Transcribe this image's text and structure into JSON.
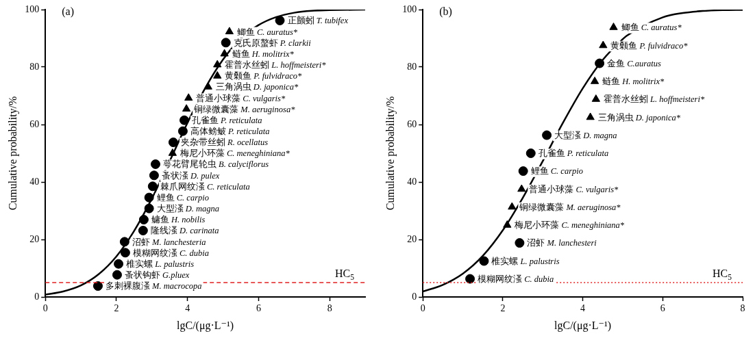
{
  "chart_data": [
    {
      "type": "scatter",
      "xlabel": "lgC/(μg·L⁻¹)",
      "ylabel": "Cumulative probability/%",
      "xlim": [
        0,
        9
      ],
      "ylim": [
        0,
        100
      ],
      "xticks": [
        0,
        2,
        4,
        6,
        8
      ],
      "yticks": [
        0,
        20,
        40,
        60,
        80,
        100
      ],
      "grid": false,
      "series": [
        {
          "type": "scatter",
          "marker": "circle",
          "color": "#000000",
          "x": [
            6.6,
            5.08,
            3.91,
            3.87,
            3.6,
            3.1,
            3.06,
            3.02,
            2.92,
            2.92,
            2.77,
            2.75,
            2.23,
            2.25,
            2.06,
            2.02,
            1.48
          ],
          "values": [
            96.2,
            88.5,
            61.5,
            57.7,
            53.8,
            46.2,
            42.3,
            38.5,
            34.6,
            30.8,
            26.9,
            23.1,
            19.2,
            15.4,
            11.5,
            7.7,
            3.8
          ]
        },
        {
          "type": "scatter",
          "marker": "triangle",
          "color": "#000000",
          "x": [
            5.18,
            5.04,
            4.84,
            4.84,
            4.58,
            4.03,
            3.97,
            3.58
          ],
          "values": [
            92.3,
            84.6,
            80.8,
            76.9,
            73.1,
            69.2,
            65.4,
            50
          ]
        },
        {
          "type": "line",
          "marker": "none",
          "color": "#000000",
          "x": [
            0,
            0.5,
            1,
            1.5,
            2,
            2.5,
            3,
            3.53,
            4,
            4.5,
            5,
            5.5,
            6,
            6.5,
            7,
            7.5,
            8,
            9
          ],
          "values": [
            0.8,
            1.9,
            4,
            7.9,
            14.1,
            23,
            34.3,
            48.1,
            60.6,
            72.7,
            82.6,
            89.9,
            94.6,
            97.4,
            98.9,
            99.6,
            99.8,
            100
          ]
        }
      ],
      "ref_lines": [
        {
          "axis": "y",
          "value": 5,
          "label": "HC$_{5}$",
          "color": "#e02020",
          "line_style": "dashed"
        }
      ],
      "annotations": [
        "(a)",
        {
          "text": "正颤蚓 T. tubifex",
          "x": 6.6,
          "y": 96.2
        },
        {
          "text": "鲫鱼 C. auratus*",
          "x": 5.18,
          "y": 92.3
        },
        {
          "text": "克氏原螯虾 P. clarkii",
          "x": 5.08,
          "y": 88.5
        },
        {
          "text": "鲢鱼 H. molitrix*",
          "x": 5.04,
          "y": 84.6
        },
        {
          "text": "霍普水丝蚓 L. hoffmeisteri*",
          "x": 4.84,
          "y": 80.8
        },
        {
          "text": "黄颡鱼 P. fulvidraco*",
          "x": 4.84,
          "y": 76.9
        },
        {
          "text": "三角涡虫 D. japonica*",
          "x": 4.58,
          "y": 73.1
        },
        {
          "text": "普通小球藻 C. vulgaris*",
          "x": 4.03,
          "y": 69.2
        },
        {
          "text": "铜绿微囊藻 M. aeruginosa*",
          "x": 3.97,
          "y": 65.4
        },
        {
          "text": "孔雀鱼 P. reticulata",
          "x": 3.91,
          "y": 61.5
        },
        {
          "text": "高体鳑鲏 P. reticulata",
          "x": 3.87,
          "y": 57.7
        },
        {
          "text": "夹杂带丝蚓 R. ocellatus",
          "x": 3.6,
          "y": 53.8
        },
        {
          "text": "梅尼小环藻 C. meneghiniana*",
          "x": 3.58,
          "y": 50
        },
        {
          "text": "萼花臂尾轮虫 B. calyciflorus",
          "x": 3.1,
          "y": 46.2
        },
        {
          "text": "蚤状溞 D. pulex",
          "x": 3.06,
          "y": 42.3
        },
        {
          "text": "棘爪网纹溞 C. reticulata",
          "x": 3.02,
          "y": 38.5
        },
        {
          "text": "鲤鱼 C. carpio",
          "x": 2.92,
          "y": 34.6
        },
        {
          "text": "大型溞 D. magna",
          "x": 2.92,
          "y": 30.8
        },
        {
          "text": "鳙鱼 H. nobilis",
          "x": 2.77,
          "y": 26.9
        },
        {
          "text": "隆线溞 D. carinata",
          "x": 2.75,
          "y": 23.1
        },
        {
          "text": "沼虾 M. lanchesteria",
          "x": 2.23,
          "y": 19.2
        },
        {
          "text": "模糊网纹溞 C. dubia",
          "x": 2.25,
          "y": 15.4
        },
        {
          "text": "椎实螺 L. palustris",
          "x": 2.06,
          "y": 11.5
        },
        {
          "text": "蚤状钩虾 G.pluex",
          "x": 2.02,
          "y": 7.7
        },
        {
          "text": "多刺裸腹溞 M. macrocopa",
          "x": 1.48,
          "y": 3.8
        }
      ]
    },
    {
      "type": "scatter",
      "xlabel": "lgC/(μg·L⁻¹)",
      "ylabel": "Cumulative probability/%",
      "xlim": [
        0,
        8
      ],
      "ylim": [
        0,
        100
      ],
      "xticks": [
        0,
        2,
        4,
        6,
        8
      ],
      "yticks": [
        0,
        20,
        40,
        60,
        80,
        100
      ],
      "grid": false,
      "series": [
        {
          "type": "scatter",
          "marker": "circle",
          "color": "#000000",
          "x": [
            4.42,
            3.1,
            2.7,
            2.51,
            2.42,
            1.53,
            1.18
          ],
          "values": [
            81.3,
            56.3,
            50,
            43.8,
            18.8,
            12.5,
            6.3
          ]
        },
        {
          "type": "scatter",
          "marker": "triangle",
          "color": "#000000",
          "x": [
            4.77,
            4.51,
            4.3,
            4.33,
            4.19,
            2.47,
            2.23,
            2.11
          ],
          "values": [
            93.8,
            87.5,
            75,
            68.8,
            62.5,
            37.5,
            31.3,
            25
          ]
        },
        {
          "type": "line",
          "marker": "none",
          "color": "#000000",
          "x": [
            0,
            0.5,
            1,
            1.5,
            2,
            2.5,
            3,
            3.5,
            4,
            4.5,
            5,
            5.1,
            6,
            6.5,
            7,
            7.5,
            8
          ],
          "values": [
            1.9,
            4.2,
            8.1,
            14.3,
            23.2,
            34.5,
            47.3,
            60.5,
            72.6,
            82.5,
            89.7,
            90.9,
            97.3,
            98.8,
            99.5,
            99.8,
            99.9
          ]
        }
      ],
      "ref_lines": [
        {
          "axis": "y",
          "value": 5,
          "label": "HC$_{5}$",
          "color": "#e02020",
          "line_style": "dotted"
        }
      ],
      "annotations": [
        "(b)",
        {
          "text": "鲫鱼 C. auratus*",
          "x": 4.77,
          "y": 93.8
        },
        {
          "text": "黄颡鱼 P. fulvidraco*",
          "x": 4.51,
          "y": 87.5
        },
        {
          "text": "金鱼 C.auratus",
          "x": 4.42,
          "y": 81.3
        },
        {
          "text": "鲢鱼 H. molitrix*",
          "x": 4.3,
          "y": 75
        },
        {
          "text": "霍普水丝蚓 L. hoffmeisteri*",
          "x": 4.33,
          "y": 68.8
        },
        {
          "text": "三角涡虫 D. japonica*",
          "x": 4.19,
          "y": 62.5
        },
        {
          "text": "大型溞 D. magna",
          "x": 3.1,
          "y": 56.3
        },
        {
          "text": "孔雀鱼 P. reticulata",
          "x": 2.7,
          "y": 50
        },
        {
          "text": "鲤鱼 C. carpio",
          "x": 2.51,
          "y": 43.8
        },
        {
          "text": "普通小球藻 C. vulgaris*",
          "x": 2.47,
          "y": 37.5
        },
        {
          "text": "铜绿微囊藻 M. aeruginosa*",
          "x": 2.23,
          "y": 31.3
        },
        {
          "text": "梅尼小环藻 C. meneghiniana*",
          "x": 2.11,
          "y": 25
        },
        {
          "text": "沼虾 M. lanchesteri",
          "x": 2.42,
          "y": 18.8
        },
        {
          "text": "椎实螺 L. palustris",
          "x": 1.53,
          "y": 12.5
        },
        {
          "text": "模糊网纹溞 C. dubia",
          "x": 1.18,
          "y": 6.3
        }
      ]
    }
  ]
}
